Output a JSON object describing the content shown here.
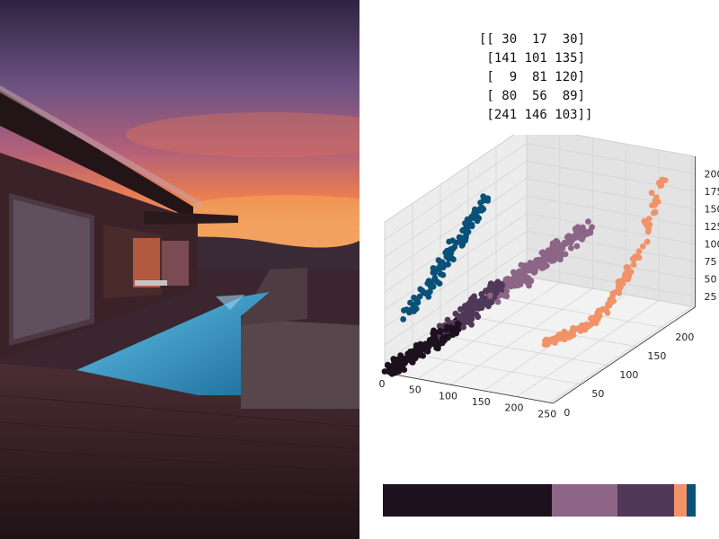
{
  "photo": {
    "subject": "house-with-pool-at-sunset",
    "colors": {
      "sky_top": "#3b2a4c",
      "sky_mid": "#7c5a86",
      "sky_glow": "#e97c55",
      "deck": "#2f1b22",
      "pool": "#3fa5d3",
      "wall": "#5a4a50",
      "roof": "#2a1a1e"
    }
  },
  "matrix_rows": [
    "[[ 30  17  30]",
    " [141 101 135]",
    " [  9  81 120]",
    " [ 80  56  89]",
    " [241 146 103]]"
  ],
  "chart_data": {
    "type": "scatter",
    "subtype": "3d-scatter",
    "title": "",
    "x": {
      "label": "",
      "range": [
        0,
        255
      ],
      "ticks": [
        0,
        50,
        100,
        150,
        200,
        250
      ]
    },
    "y": {
      "label": "",
      "range": [
        0,
        255
      ],
      "ticks": [
        0,
        50,
        100,
        150,
        200
      ]
    },
    "z": {
      "label": "",
      "range": [
        0,
        225
      ],
      "ticks": [
        25,
        50,
        75,
        100,
        125,
        150,
        175,
        200
      ]
    },
    "grid": true,
    "clusters": [
      {
        "center": [
          30,
          17,
          30
        ],
        "color": "#1e111e",
        "share": 0.54
      },
      {
        "center": [
          141,
          101,
          135
        ],
        "color": "#8d6587",
        "share": 0.21
      },
      {
        "center": [
          9,
          81,
          120
        ],
        "color": "#095178",
        "share": 0.03
      },
      {
        "center": [
          80,
          56,
          89
        ],
        "color": "#503859",
        "share": 0.18
      },
      {
        "center": [
          241,
          146,
          103
        ],
        "color": "#f19267",
        "share": 0.04
      }
    ]
  },
  "palette_bar": [
    {
      "color": "#1e111e",
      "share": 0.54
    },
    {
      "color": "#8d6587",
      "share": 0.21
    },
    {
      "color": "#503859",
      "share": 0.18
    },
    {
      "color": "#f19267",
      "share": 0.04
    },
    {
      "color": "#095178",
      "share": 0.03
    }
  ]
}
